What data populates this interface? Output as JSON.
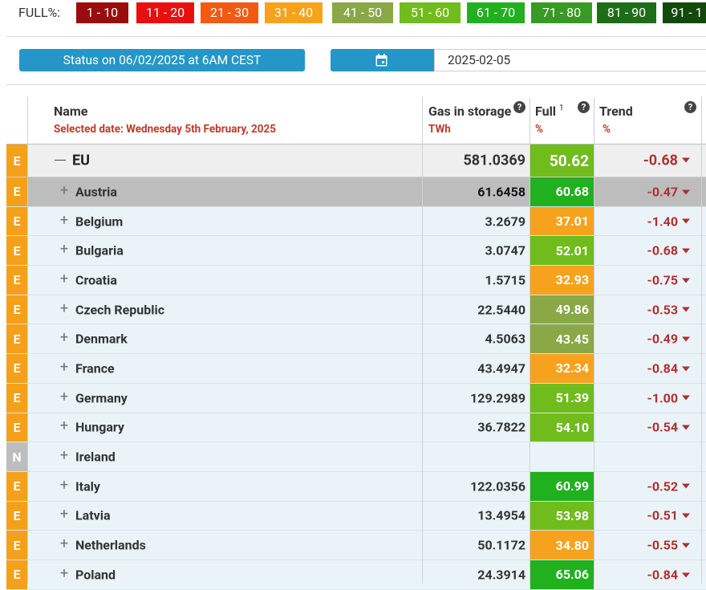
{
  "legend": {
    "title": "FULL%:",
    "chips": [
      {
        "label": "1 - 10",
        "color": "#9b0d0d"
      },
      {
        "label": "11 - 20",
        "color": "#e8100f"
      },
      {
        "label": "21 - 30",
        "color": "#f25a12"
      },
      {
        "label": "31 - 40",
        "color": "#f7a21c"
      },
      {
        "label": "41 - 50",
        "color": "#8aa845"
      },
      {
        "label": "51 - 60",
        "color": "#6fbc1c"
      },
      {
        "label": "61 - 70",
        "color": "#21b01e"
      },
      {
        "label": "71 - 80",
        "color": "#389a23"
      },
      {
        "label": "81 - 90",
        "color": "#1e6e18"
      },
      {
        "label": "91 - 1",
        "color": "#124a0c"
      }
    ]
  },
  "status": {
    "label": "Status on 06/02/2025 at 6AM CEST"
  },
  "date_picker": {
    "icon": "calendar-icon",
    "value": "2025-02-05"
  },
  "table": {
    "headers": {
      "name": "Name",
      "selected_date": "Selected date: Wednesday 5th February, 2025",
      "gas": "Gas in storage",
      "gas_unit": "TWh",
      "full": "Full",
      "full_sup": "1",
      "full_unit": "%",
      "trend": "Trend",
      "trend_unit": "%",
      "help": "?"
    },
    "eu": {
      "badge": "E",
      "name": "EU",
      "gas": "581.0369",
      "full": "50.62",
      "full_color": "#6fbc1c",
      "trend": "-0.68"
    },
    "rows": [
      {
        "badge": "E",
        "name": "Austria",
        "gas": "61.6458",
        "full": "60.68",
        "full_color": "#21b01e",
        "trend": "-0.47",
        "selected": true
      },
      {
        "badge": "E",
        "name": "Belgium",
        "gas": "3.2679",
        "full": "37.01",
        "full_color": "#f7a21c",
        "trend": "-1.40"
      },
      {
        "badge": "E",
        "name": "Bulgaria",
        "gas": "3.0747",
        "full": "52.01",
        "full_color": "#6fbc1c",
        "trend": "-0.68"
      },
      {
        "badge": "E",
        "name": "Croatia",
        "gas": "1.5715",
        "full": "32.93",
        "full_color": "#f7a21c",
        "trend": "-0.75"
      },
      {
        "badge": "E",
        "name": "Czech Republic",
        "gas": "22.5440",
        "full": "49.86",
        "full_color": "#8aa845",
        "trend": "-0.53"
      },
      {
        "badge": "E",
        "name": "Denmark",
        "gas": "4.5063",
        "full": "43.45",
        "full_color": "#8aa845",
        "trend": "-0.49"
      },
      {
        "badge": "E",
        "name": "France",
        "gas": "43.4947",
        "full": "32.34",
        "full_color": "#f7a21c",
        "trend": "-0.84"
      },
      {
        "badge": "E",
        "name": "Germany",
        "gas": "129.2989",
        "full": "51.39",
        "full_color": "#6fbc1c",
        "trend": "-1.00"
      },
      {
        "badge": "E",
        "name": "Hungary",
        "gas": "36.7822",
        "full": "54.10",
        "full_color": "#6fbc1c",
        "trend": "-0.54"
      },
      {
        "badge": "N",
        "name": "Ireland",
        "gas": "",
        "full": "",
        "full_color": "",
        "trend": ""
      },
      {
        "badge": "E",
        "name": "Italy",
        "gas": "122.0356",
        "full": "60.99",
        "full_color": "#21b01e",
        "trend": "-0.52"
      },
      {
        "badge": "E",
        "name": "Latvia",
        "gas": "13.4954",
        "full": "53.98",
        "full_color": "#6fbc1c",
        "trend": "-0.51"
      },
      {
        "badge": "E",
        "name": "Netherlands",
        "gas": "50.1172",
        "full": "34.80",
        "full_color": "#f7a21c",
        "trend": "-0.55"
      },
      {
        "badge": "E",
        "name": "Poland",
        "gas": "24.3914",
        "full": "65.06",
        "full_color": "#21b01e",
        "trend": "-0.84"
      }
    ]
  }
}
